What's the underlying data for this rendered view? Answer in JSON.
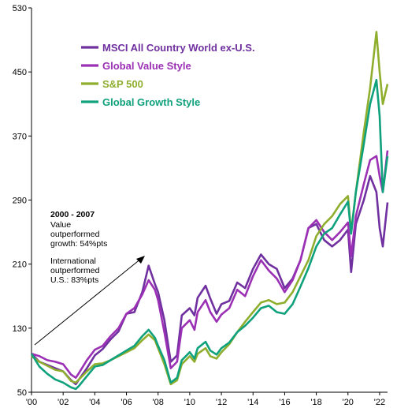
{
  "chart_data": {
    "type": "line",
    "title": "",
    "xlabel": "",
    "ylabel": "",
    "xlim": [
      2000.0,
      2022.5
    ],
    "ylim": [
      50,
      530
    ],
    "yticks": [
      50,
      130,
      210,
      290,
      370,
      450,
      530
    ],
    "xticks": [
      {
        "value": 2000,
        "label": "'00"
      },
      {
        "value": 2002,
        "label": "'02"
      },
      {
        "value": 2004,
        "label": "'04"
      },
      {
        "value": 2006,
        "label": "'06"
      },
      {
        "value": 2008,
        "label": "'08"
      },
      {
        "value": 2010,
        "label": "'10"
      },
      {
        "value": 2012,
        "label": "'12"
      },
      {
        "value": 2014,
        "label": "'14"
      },
      {
        "value": 2016,
        "label": "'16"
      },
      {
        "value": 2018,
        "label": "'18"
      },
      {
        "value": 2020,
        "label": "'20"
      },
      {
        "value": 2022,
        "label": "'22"
      }
    ],
    "grid": false,
    "legend_position": "top-left",
    "series": [
      {
        "name": "MSCI All Country World ex-U.S.",
        "color": "#7030A0",
        "x": [
          2000.0,
          2000.5,
          2001.0,
          2001.5,
          2002.0,
          2002.5,
          2002.8,
          2003.0,
          2003.5,
          2004.0,
          2004.5,
          2005.0,
          2005.5,
          2006.0,
          2006.5,
          2007.0,
          2007.4,
          2007.8,
          2008.0,
          2008.4,
          2008.8,
          2009.2,
          2009.5,
          2010.0,
          2010.3,
          2010.5,
          2011.0,
          2011.3,
          2011.7,
          2012.0,
          2012.5,
          2013.0,
          2013.5,
          2014.0,
          2014.5,
          2015.0,
          2015.5,
          2016.0,
          2016.5,
          2017.0,
          2017.5,
          2018.0,
          2018.5,
          2019.0,
          2019.5,
          2020.0,
          2020.2,
          2020.5,
          2021.0,
          2021.4,
          2021.8,
          2022.0,
          2022.2,
          2022.5
        ],
        "y": [
          98,
          88,
          84,
          80,
          76,
          65,
          60,
          66,
          80,
          96,
          104,
          116,
          126,
          148,
          150,
          175,
          208,
          185,
          175,
          140,
          88,
          96,
          146,
          155,
          146,
          168,
          183,
          167,
          148,
          160,
          164,
          187,
          180,
          204,
          222,
          210,
          204,
          180,
          192,
          215,
          255,
          260,
          240,
          232,
          240,
          253,
          200,
          260,
          290,
          320,
          300,
          255,
          232,
          287
        ]
      },
      {
        "name": "Global Value Style",
        "color": "#9B30B5",
        "x": [
          2000.0,
          2000.5,
          2001.0,
          2001.5,
          2002.0,
          2002.5,
          2002.8,
          2003.0,
          2003.5,
          2004.0,
          2004.5,
          2005.0,
          2005.5,
          2006.0,
          2006.5,
          2007.0,
          2007.4,
          2007.8,
          2008.0,
          2008.4,
          2008.8,
          2009.2,
          2009.5,
          2010.0,
          2010.3,
          2010.5,
          2011.0,
          2011.3,
          2011.7,
          2012.0,
          2012.5,
          2013.0,
          2013.5,
          2014.0,
          2014.5,
          2015.0,
          2015.5,
          2016.0,
          2016.5,
          2017.0,
          2017.5,
          2018.0,
          2018.5,
          2019.0,
          2019.5,
          2020.0,
          2020.2,
          2020.5,
          2021.0,
          2021.4,
          2021.8,
          2022.0,
          2022.2,
          2022.5
        ],
        "y": [
          98,
          95,
          90,
          88,
          85,
          72,
          68,
          74,
          90,
          103,
          108,
          120,
          130,
          148,
          155,
          172,
          190,
          178,
          165,
          125,
          80,
          88,
          130,
          140,
          128,
          150,
          165,
          150,
          138,
          147,
          155,
          178,
          170,
          195,
          215,
          202,
          192,
          175,
          190,
          215,
          255,
          265,
          250,
          240,
          250,
          262,
          220,
          270,
          310,
          340,
          345,
          320,
          300,
          352
        ]
      },
      {
        "name": "S&P 500",
        "color": "#8FAE2E",
        "x": [
          2000.0,
          2000.5,
          2001.0,
          2001.5,
          2002.0,
          2002.5,
          2002.8,
          2003.0,
          2003.5,
          2004.0,
          2004.5,
          2005.0,
          2005.5,
          2006.0,
          2006.5,
          2007.0,
          2007.4,
          2007.8,
          2008.0,
          2008.4,
          2008.8,
          2009.2,
          2009.5,
          2010.0,
          2010.3,
          2010.5,
          2011.0,
          2011.3,
          2011.7,
          2012.0,
          2012.5,
          2013.0,
          2013.5,
          2014.0,
          2014.5,
          2015.0,
          2015.5,
          2016.0,
          2016.5,
          2017.0,
          2017.5,
          2018.0,
          2018.5,
          2019.0,
          2019.5,
          2020.0,
          2020.2,
          2020.5,
          2021.0,
          2021.4,
          2021.8,
          2022.0,
          2022.2,
          2022.5
        ],
        "y": [
          95,
          88,
          83,
          78,
          76,
          64,
          62,
          66,
          76,
          85,
          86,
          90,
          95,
          100,
          105,
          115,
          122,
          115,
          105,
          85,
          60,
          65,
          85,
          95,
          88,
          98,
          105,
          95,
          92,
          100,
          110,
          125,
          138,
          150,
          162,
          165,
          160,
          162,
          175,
          195,
          215,
          245,
          260,
          270,
          285,
          295,
          250,
          300,
          375,
          430,
          500,
          450,
          410,
          435
        ]
      },
      {
        "name": "Global Growth Style",
        "color": "#0FA17C",
        "x": [
          2000.0,
          2000.5,
          2001.0,
          2001.5,
          2002.0,
          2002.5,
          2002.8,
          2003.0,
          2003.5,
          2004.0,
          2004.5,
          2005.0,
          2005.5,
          2006.0,
          2006.5,
          2007.0,
          2007.4,
          2007.8,
          2008.0,
          2008.4,
          2008.8,
          2009.2,
          2009.5,
          2010.0,
          2010.3,
          2010.5,
          2011.0,
          2011.3,
          2011.7,
          2012.0,
          2012.5,
          2013.0,
          2013.5,
          2014.0,
          2014.5,
          2015.0,
          2015.5,
          2016.0,
          2016.5,
          2017.0,
          2017.5,
          2018.0,
          2018.5,
          2019.0,
          2019.5,
          2020.0,
          2020.2,
          2020.5,
          2021.0,
          2021.4,
          2021.8,
          2022.0,
          2022.2,
          2022.5
        ],
        "y": [
          98,
          82,
          73,
          66,
          62,
          56,
          54,
          58,
          70,
          82,
          84,
          90,
          96,
          102,
          108,
          120,
          128,
          118,
          108,
          90,
          62,
          68,
          90,
          100,
          92,
          105,
          113,
          102,
          97,
          105,
          112,
          125,
          133,
          143,
          155,
          158,
          150,
          148,
          160,
          182,
          205,
          232,
          248,
          255,
          272,
          288,
          248,
          300,
          360,
          410,
          440,
          395,
          300,
          345
        ]
      }
    ],
    "annotations": {
      "period": "2000 - 2007",
      "value_lines": [
        "Value",
        "outperformed",
        "growth: 54%pts"
      ],
      "intl_lines": [
        "International",
        "outperformed",
        "U.S.: 83%pts"
      ]
    }
  }
}
